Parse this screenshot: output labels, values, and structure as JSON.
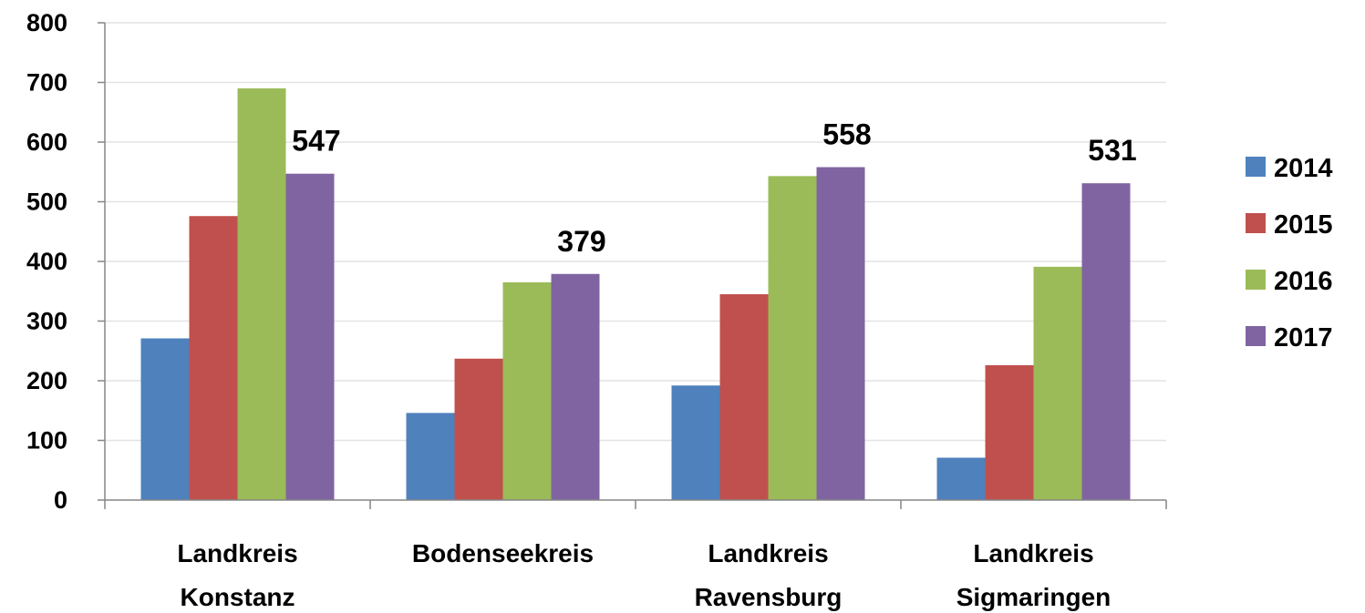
{
  "chart_data": {
    "type": "bar",
    "title": "",
    "xlabel": "",
    "ylabel": "",
    "categories": [
      [
        "Landkreis",
        "Konstanz"
      ],
      [
        "Bodenseekreis"
      ],
      [
        "Landkreis",
        "Ravensburg"
      ],
      [
        "Landkreis",
        "Sigmaringen"
      ]
    ],
    "series": [
      {
        "name": "2014",
        "color": "#4f81bd",
        "values": [
          271,
          146,
          192,
          71
        ]
      },
      {
        "name": "2015",
        "color": "#c0504d",
        "values": [
          476,
          237,
          345,
          226
        ]
      },
      {
        "name": "2016",
        "color": "#9bbb59",
        "values": [
          690,
          365,
          543,
          391
        ]
      },
      {
        "name": "2017",
        "color": "#8064a2",
        "values": [
          547,
          379,
          558,
          531
        ]
      }
    ],
    "data_labels_series": "2017",
    "ylim": [
      0,
      800
    ],
    "yticks": [
      0,
      100,
      200,
      300,
      400,
      500,
      600,
      700,
      800
    ],
    "grid": true,
    "legend_position": "right"
  }
}
